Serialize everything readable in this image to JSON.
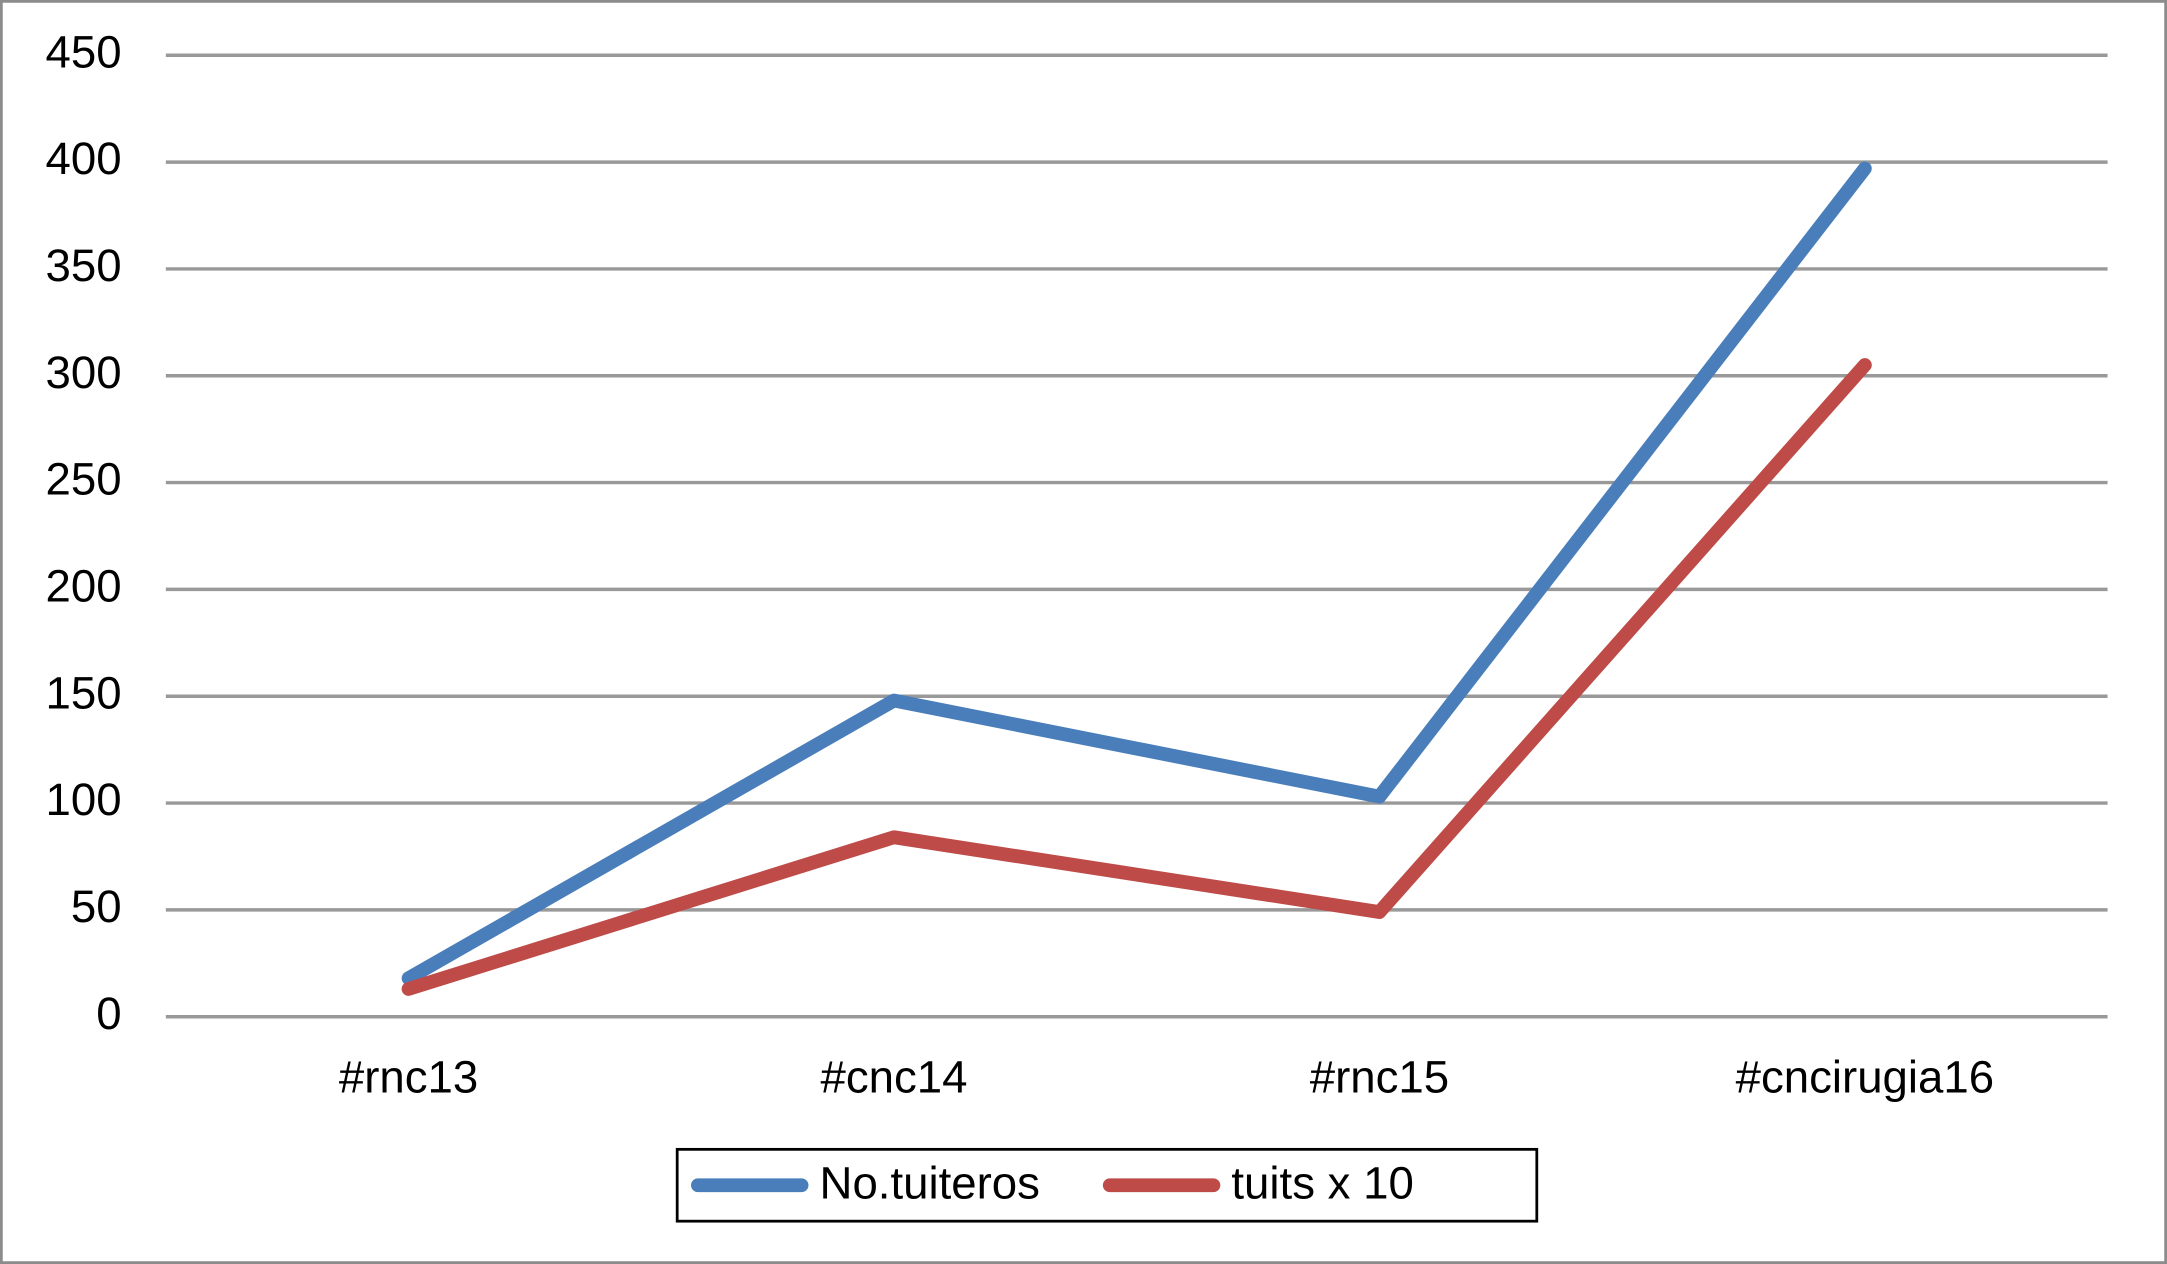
{
  "chart_data": {
    "type": "line",
    "categories": [
      "#rnc13",
      "#cnc14",
      "#rnc15",
      "#cncirugia16"
    ],
    "series": [
      {
        "name": "No.tuiteros",
        "color": "#4a7ebb",
        "values": [
          18,
          148,
          103,
          397
        ]
      },
      {
        "name": "tuits x 10",
        "color": "#be4b48",
        "values": [
          13,
          84,
          49,
          305
        ]
      }
    ],
    "ylim": [
      0,
      450
    ],
    "yticks": [
      0,
      50,
      100,
      150,
      200,
      250,
      300,
      350,
      400,
      450
    ],
    "grid": true,
    "legend": "bottom"
  }
}
